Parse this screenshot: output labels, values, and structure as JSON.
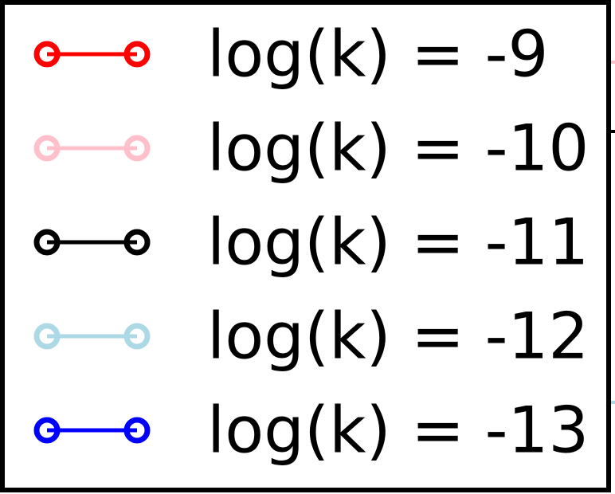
{
  "chart_data": {
    "type": "line",
    "legend": {
      "placement": "cropped",
      "entries": [
        {
          "label": "log(k) = -9",
          "color": "#ff0000",
          "marker": "open-circle"
        },
        {
          "label": "log(k) = -10",
          "color": "#ffc0cb",
          "marker": "open-circle"
        },
        {
          "label": "log(k) = -11",
          "color": "#000000",
          "marker": "open-circle"
        },
        {
          "label": "log(k) = -12",
          "color": "#add8e6",
          "marker": "open-circle"
        },
        {
          "label": "log(k) = -13",
          "color": "#0000ff",
          "marker": "open-circle"
        }
      ]
    },
    "series": [
      {
        "name": "log(k) = -9",
        "color": "#ff0000"
      },
      {
        "name": "log(k) = -10",
        "color": "#ffc0cb"
      },
      {
        "name": "log(k) = -11",
        "color": "#000000"
      },
      {
        "name": "log(k) = -12",
        "color": "#add8e6"
      },
      {
        "name": "log(k) = -13",
        "color": "#0000ff"
      }
    ]
  }
}
